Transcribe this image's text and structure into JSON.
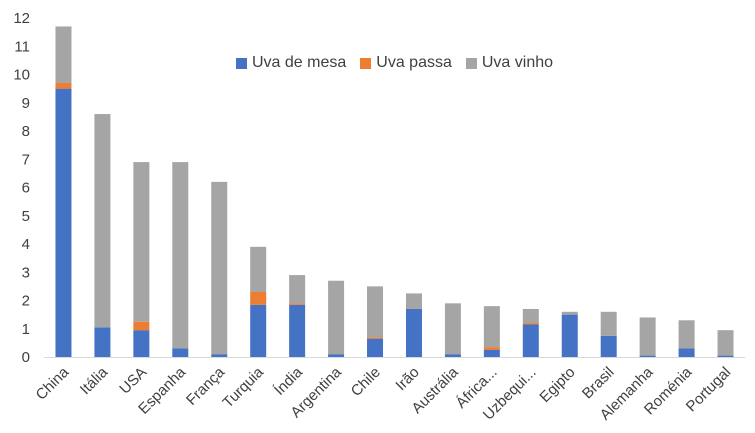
{
  "chart_data": {
    "type": "bar",
    "stacked": true,
    "categories": [
      "China",
      "Itália",
      "USA",
      "Espanha",
      "França",
      "Turquia",
      "Índia",
      "Argentina",
      "Chile",
      "Irão",
      "Austrália",
      "África...",
      "Uzbequi...",
      "Egipto",
      "Brasil",
      "Alemanha",
      "Roménia",
      "Portugal"
    ],
    "series": [
      {
        "name": "Uva de mesa",
        "color": "#4472C4",
        "values": [
          9.5,
          1.05,
          0.95,
          0.3,
          0.1,
          1.85,
          1.85,
          0.1,
          0.65,
          1.7,
          0.1,
          0.25,
          1.15,
          1.5,
          0.75,
          0.05,
          0.3,
          0.05
        ]
      },
      {
        "name": "Uva passa",
        "color": "#ED7D31",
        "values": [
          0.2,
          0,
          0.3,
          0,
          0,
          0.45,
          0.05,
          0,
          0.05,
          0,
          0,
          0.1,
          0.05,
          0,
          0,
          0,
          0,
          0
        ]
      },
      {
        "name": "Uva vinho",
        "color": "#A5A5A5",
        "values": [
          2.0,
          7.55,
          5.65,
          6.6,
          6.1,
          1.6,
          1.0,
          2.6,
          1.8,
          0.55,
          1.8,
          1.45,
          0.5,
          0.1,
          0.85,
          1.35,
          1.0,
          0.9
        ]
      }
    ],
    "ylim": [
      0,
      12
    ],
    "yticks": [
      0,
      1,
      2,
      3,
      4,
      5,
      6,
      7,
      8,
      9,
      10,
      11,
      12
    ],
    "grid": false,
    "legend": "top-center",
    "title": "",
    "xlabel": "",
    "ylabel": ""
  }
}
